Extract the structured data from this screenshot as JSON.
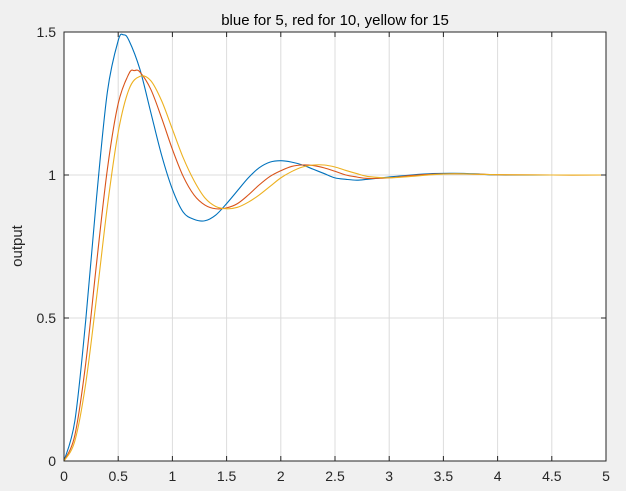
{
  "chart_data": {
    "type": "line",
    "title": "blue for 5, red for 10, yellow for 15",
    "xlabel": "",
    "ylabel": "output",
    "xlim": [
      0,
      5
    ],
    "ylim": [
      0,
      1.5
    ],
    "xticks": [
      0,
      0.5,
      1,
      1.5,
      2,
      2.5,
      3,
      3.5,
      4,
      4.5,
      5
    ],
    "xtick_labels": [
      "0",
      "0.5",
      "1",
      "1.5",
      "2",
      "2.5",
      "3",
      "3.5",
      "4",
      "4.5",
      "5"
    ],
    "yticks": [
      0,
      0.5,
      1,
      1.5
    ],
    "ytick_labels": [
      "0",
      "0.5",
      "1",
      "1.5"
    ],
    "grid": true,
    "series": [
      {
        "color": "#0072BD",
        "x": [
          0,
          0.1,
          0.2,
          0.3,
          0.4,
          0.5,
          0.55,
          0.6,
          0.7,
          0.8,
          0.9,
          1.0,
          1.1,
          1.2,
          1.3,
          1.4,
          1.5,
          1.6,
          1.7,
          1.8,
          1.9,
          2.0,
          2.1,
          2.2,
          2.3,
          2.4,
          2.5,
          2.6,
          2.7,
          2.8,
          3.0,
          3.2,
          3.4,
          3.6,
          3.8,
          4.0,
          4.5,
          5.0
        ],
        "y": [
          0,
          0.14,
          0.49,
          0.92,
          1.29,
          1.47,
          1.49,
          1.47,
          1.37,
          1.22,
          1.07,
          0.95,
          0.87,
          0.845,
          0.84,
          0.86,
          0.9,
          0.945,
          0.99,
          1.025,
          1.045,
          1.05,
          1.045,
          1.035,
          1.02,
          1.005,
          0.99,
          0.985,
          0.982,
          0.985,
          0.993,
          1.0,
          1.005,
          1.006,
          1.004,
          1.0,
          1.0,
          1.0
        ]
      },
      {
        "color": "#D95319",
        "x": [
          0,
          0.1,
          0.2,
          0.3,
          0.4,
          0.5,
          0.6,
          0.65,
          0.7,
          0.8,
          0.9,
          1.0,
          1.1,
          1.2,
          1.3,
          1.4,
          1.5,
          1.6,
          1.7,
          1.8,
          1.9,
          2.0,
          2.1,
          2.2,
          2.3,
          2.4,
          2.5,
          2.6,
          2.7,
          2.8,
          3.0,
          3.2,
          3.4,
          3.6,
          3.8,
          4.0,
          4.5,
          5.0
        ],
        "y": [
          0,
          0.09,
          0.34,
          0.69,
          1.02,
          1.25,
          1.355,
          1.365,
          1.36,
          1.3,
          1.2,
          1.09,
          0.995,
          0.93,
          0.895,
          0.882,
          0.885,
          0.9,
          0.93,
          0.965,
          0.995,
          1.015,
          1.03,
          1.035,
          1.033,
          1.025,
          1.013,
          1.0,
          0.993,
          0.988,
          0.99,
          0.998,
          1.003,
          1.004,
          1.003,
          1.001,
          1.0,
          1.0
        ]
      },
      {
        "color": "#EDB120",
        "x": [
          0,
          0.1,
          0.2,
          0.3,
          0.4,
          0.5,
          0.6,
          0.7,
          0.8,
          0.9,
          1.0,
          1.1,
          1.2,
          1.3,
          1.4,
          1.5,
          1.6,
          1.7,
          1.8,
          1.9,
          2.0,
          2.1,
          2.2,
          2.3,
          2.4,
          2.5,
          2.6,
          2.7,
          2.8,
          3.0,
          3.2,
          3.4,
          3.6,
          3.8,
          4.0,
          4.5,
          5.0
        ],
        "y": [
          0,
          0.07,
          0.27,
          0.57,
          0.89,
          1.15,
          1.3,
          1.345,
          1.33,
          1.26,
          1.16,
          1.06,
          0.98,
          0.92,
          0.89,
          0.882,
          0.887,
          0.905,
          0.93,
          0.96,
          0.99,
          1.012,
          1.028,
          1.035,
          1.035,
          1.028,
          1.016,
          1.005,
          0.995,
          0.99,
          0.995,
          1.001,
          1.004,
          1.003,
          1.001,
          1.0,
          1.0
        ]
      }
    ]
  }
}
